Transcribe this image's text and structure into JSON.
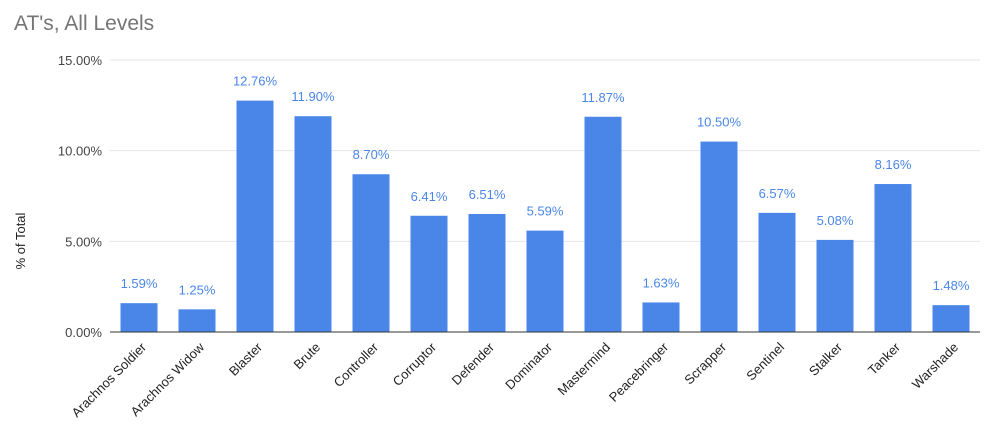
{
  "chart_data": {
    "type": "bar",
    "title": "AT's, All Levels",
    "ylabel": "% of Total",
    "xlabel": "",
    "ylim": [
      0,
      15
    ],
    "yticks": [
      0,
      5,
      10,
      15
    ],
    "ytick_labels": [
      "0.00%",
      "5.00%",
      "10.00%",
      "15.00%"
    ],
    "grid": true,
    "legend": "none",
    "bar_color": "#4a86e8",
    "categories": [
      "Arachnos Soldier",
      "Arachnos Widow",
      "Blaster",
      "Brute",
      "Controller",
      "Corruptor",
      "Defender",
      "Dominator",
      "Mastermind",
      "Peacebringer",
      "Scrapper",
      "Sentinel",
      "Stalker",
      "Tanker",
      "Warshade"
    ],
    "values": [
      1.59,
      1.25,
      12.76,
      11.9,
      8.7,
      6.41,
      6.51,
      5.59,
      11.87,
      1.63,
      10.5,
      6.57,
      5.08,
      8.16,
      1.48
    ],
    "data_labels": [
      "1.59%",
      "1.25%",
      "12.76%",
      "11.90%",
      "8.70%",
      "6.41%",
      "6.51%",
      "5.59%",
      "11.87%",
      "1.63%",
      "10.50%",
      "6.57%",
      "5.08%",
      "8.16%",
      "1.48%"
    ]
  }
}
